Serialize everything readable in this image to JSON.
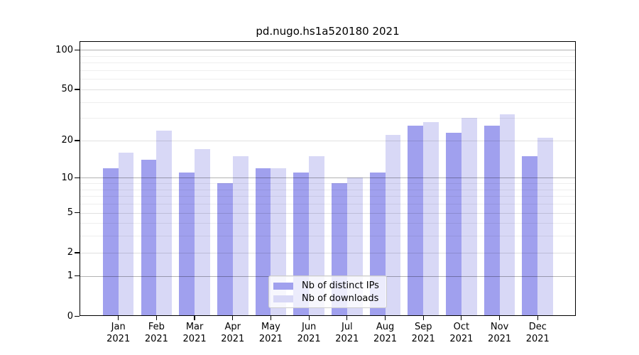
{
  "title": "pd.nugo.hs1a520180 2021",
  "chart_data": {
    "type": "bar",
    "title": "pd.nugo.hs1a520180 2021",
    "categories": [
      "Jan",
      "Feb",
      "Mar",
      "Apr",
      "May",
      "Jun",
      "Jul",
      "Aug",
      "Sep",
      "Oct",
      "Nov",
      "Dec"
    ],
    "year": "2021",
    "series": [
      {
        "name": "Nb of distinct IPs",
        "color": "#a0a0ee",
        "values": [
          12,
          14,
          11,
          9,
          12,
          11,
          9,
          11,
          26,
          23,
          26,
          15
        ]
      },
      {
        "name": "Nb of downloads",
        "color": "#d8d8f6",
        "values": [
          16,
          24,
          17,
          15,
          12,
          15,
          10,
          22,
          28,
          30,
          32,
          21
        ]
      }
    ],
    "yscale": "log1p",
    "yticks": [
      0,
      1,
      2,
      5,
      10,
      20,
      50,
      100
    ],
    "ylim": [
      0,
      117
    ],
    "grid": true,
    "legend_position": "inside-bottom-center",
    "xlabel": "",
    "ylabel": ""
  }
}
